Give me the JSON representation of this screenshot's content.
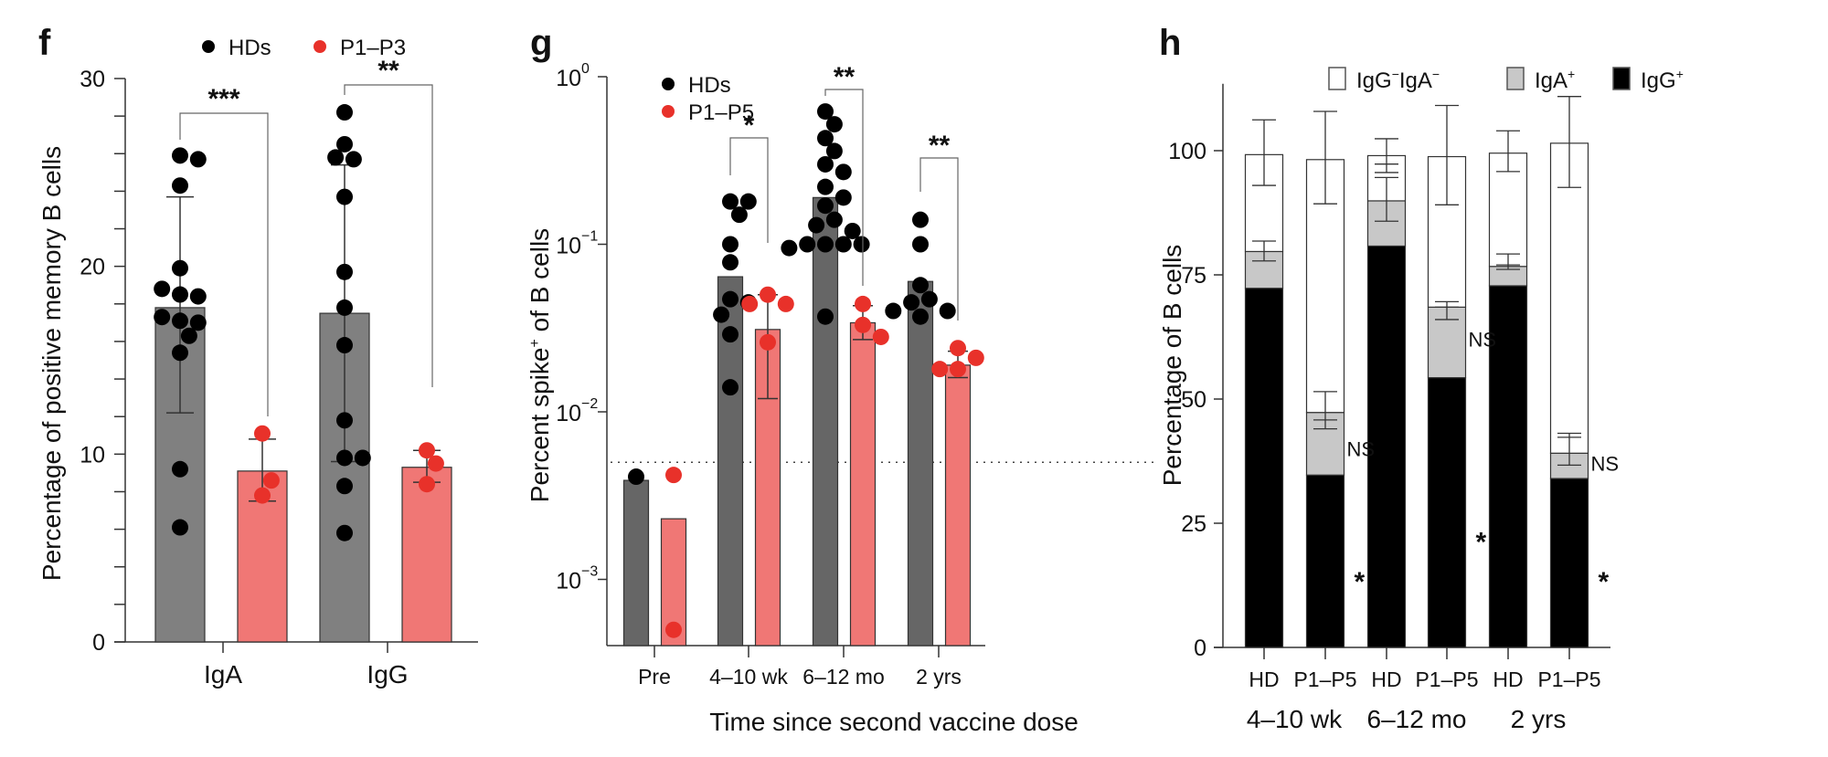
{
  "colors": {
    "hd_dot": "#000000",
    "patient_dot": "#E8312A",
    "hd_bar_f": "#808080",
    "hd_bar_g": "#666666",
    "patient_bar": "#F07775",
    "igg_neg_iga_neg": "#FFFFFF",
    "iga_pos": "#C8C8C8",
    "igg_pos": "#000000"
  },
  "chart_data": [
    {
      "panel": "f",
      "type": "bar",
      "title": "",
      "xlabel": "",
      "ylabel": "Percentage of positive memory B cells",
      "ylim": [
        0,
        30
      ],
      "yticks": [
        0,
        10,
        20,
        30
      ],
      "y_minor_step": 2,
      "categories": [
        "IgA",
        "IgG"
      ],
      "legend": {
        "position": "top",
        "entries": [
          {
            "label": "HDs",
            "color": "#000000"
          },
          {
            "label": "P1–P3",
            "color": "#E8312A"
          }
        ]
      },
      "series": [
        {
          "name": "HDs",
          "values": [
            17.8,
            17.5
          ],
          "error_low": [
            12.2,
            9.6
          ],
          "error_high": [
            23.7,
            25.4
          ],
          "points": [
            [
              25.9,
              25.7,
              24.3,
              19.9,
              18.5,
              18.4,
              18.8,
              17.1,
              17.0,
              17.3,
              16.3,
              15.4,
              9.2,
              6.1
            ],
            [
              28.2,
              26.5,
              25.7,
              25.8,
              23.7,
              19.7,
              17.8,
              15.8,
              11.8,
              9.8,
              9.8,
              8.3,
              5.8
            ]
          ]
        },
        {
          "name": "P1–P3",
          "values": [
            9.1,
            9.3
          ],
          "error_low": [
            7.5,
            8.5
          ],
          "error_high": [
            10.8,
            10.2
          ],
          "points": [
            [
              11.1,
              7.8,
              8.6
            ],
            [
              10.2,
              8.4,
              9.5
            ]
          ]
        }
      ],
      "significance": [
        {
          "category": "IgA",
          "label": "***"
        },
        {
          "category": "IgG",
          "label": "**"
        }
      ]
    },
    {
      "panel": "g",
      "type": "bar",
      "yscale": "log",
      "title": "",
      "xlabel": "Time since second vaccine dose",
      "ylabel": "Percent spike⁺ of B cells",
      "ylabel_parts": [
        "Percent spike",
        "+",
        " of B cells"
      ],
      "ylim": [
        0.0003,
        1
      ],
      "yticks": [
        0.001,
        0.01,
        0.1,
        1
      ],
      "ytick_labels": [
        {
          "base": "10",
          "exp": "−3"
        },
        {
          "base": "10",
          "exp": "−2"
        },
        {
          "base": "10",
          "exp": "−1"
        },
        {
          "base": "10",
          "exp": "0"
        }
      ],
      "threshold_line": 0.005,
      "categories": [
        "Pre",
        "4–10 wk",
        "6–12 mo",
        "2 yrs"
      ],
      "legend": {
        "position": "top-left",
        "entries": [
          {
            "label": "HDs",
            "color": "#000000"
          },
          {
            "label": "P1–P5",
            "color": "#E8312A"
          }
        ]
      },
      "series": [
        {
          "name": "HDs",
          "values": [
            0.0039,
            0.064,
            0.19,
            0.06
          ],
          "points": [
            [
              0.0041
            ],
            [
              0.18,
              0.18,
              0.15,
              0.1,
              0.078,
              0.047,
              0.045,
              0.038,
              0.029,
              0.014
            ],
            [
              0.62,
              0.52,
              0.43,
              0.36,
              0.3,
              0.27,
              0.22,
              0.19,
              0.17,
              0.14,
              0.13,
              0.12,
              0.1,
              0.1,
              0.1,
              0.1,
              0.095,
              0.037
            ],
            [
              0.14,
              0.1,
              0.057,
              0.047,
              0.045,
              0.04,
              0.04,
              0.037
            ]
          ]
        },
        {
          "name": "P1–P5",
          "values": [
            0.0023,
            0.031,
            0.034,
            0.019
          ],
          "error_low": [
            null,
            0.012,
            0.027,
            0.016
          ],
          "error_high": [
            null,
            0.05,
            0.043,
            0.023
          ],
          "points": [
            [
              0.0042,
              0.0005
            ],
            [
              0.05,
              0.044,
              0.044,
              0.026
            ],
            [
              0.044,
              0.033,
              0.028
            ],
            [
              0.024,
              0.021,
              0.018,
              0.018
            ]
          ]
        }
      ],
      "significance": [
        {
          "category": "4–10 wk",
          "label": "*"
        },
        {
          "category": "6–12 mo",
          "label": "**"
        },
        {
          "category": "2 yrs",
          "label": "**"
        }
      ]
    },
    {
      "panel": "h",
      "type": "bar",
      "stacked": true,
      "title": "",
      "xlabel": "",
      "ylabel": "Percentage of B cells",
      "ylim": [
        0,
        112
      ],
      "yticks": [
        0,
        25,
        50,
        75,
        100
      ],
      "categories": [
        "HD",
        "P1–P5",
        "HD",
        "P1–P5",
        "HD",
        "P1–P5"
      ],
      "groups": [
        "4–10 wk",
        "6–12 mo",
        "2 yrs"
      ],
      "legend": {
        "position": "top",
        "entries": [
          {
            "label": "IgG⁻IgA⁻",
            "parts": [
              "IgG",
              "−",
              "IgA",
              "−"
            ],
            "color": "#FFFFFF"
          },
          {
            "label": "IgA⁺",
            "parts": [
              "IgA",
              "+"
            ],
            "color": "#C8C8C8"
          },
          {
            "label": "IgG⁺",
            "parts": [
              "IgG",
              "+"
            ],
            "color": "#000000"
          }
        ]
      },
      "series": [
        {
          "name": "IgG⁺",
          "values": [
            72.3,
            34.7,
            80.8,
            54.3,
            72.8,
            34.0
          ],
          "error_low": [
            null,
            null,
            null,
            null,
            null,
            null
          ],
          "error_high": [
            null,
            null,
            null,
            null,
            null,
            null
          ]
        },
        {
          "name": "IgA⁺",
          "values": [
            7.4,
            12.6,
            9.1,
            14.2,
            3.9,
            5.1
          ],
          "error_low": [
            77.8,
            44.0,
            85.8,
            66.0,
            76.1,
            36.7
          ],
          "error_high": [
            81.8,
            51.5,
            94.6,
            69.6,
            79.2,
            43.1
          ]
        },
        {
          "name": "IgG⁻IgA⁻",
          "values": [
            19.5,
            50.9,
            9.1,
            30.3,
            22.8,
            62.4
          ],
          "error_low": [
            93.0,
            89.3,
            95.6,
            89.1,
            95.8,
            92.6
          ],
          "error_high": [
            106.2,
            107.9,
            102.4,
            109.1,
            104.0,
            110.9
          ]
        }
      ],
      "extra_error_marks": [
        {
          "bar": 1,
          "value": 45.8
        },
        {
          "bar": 2,
          "value": 97.3
        },
        {
          "bar": 3,
          "value": 68.5
        },
        {
          "bar": 4,
          "value": 77.0
        },
        {
          "bar": 5,
          "value": 42.3
        }
      ],
      "annotations": [
        {
          "bar": 1,
          "label": "NS",
          "value": 40
        },
        {
          "bar": 1,
          "label": "*",
          "value": 14
        },
        {
          "bar": 3,
          "label": "NS",
          "value": 62
        },
        {
          "bar": 3,
          "label": "*",
          "value": 22
        },
        {
          "bar": 5,
          "label": "NS",
          "value": 37
        },
        {
          "bar": 5,
          "label": "*",
          "value": 14
        }
      ]
    }
  ]
}
